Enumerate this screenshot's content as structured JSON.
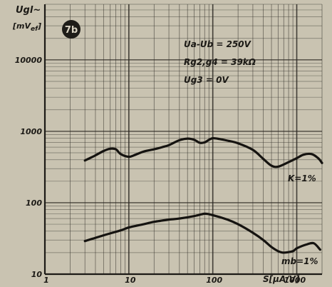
{
  "chart_data": {
    "type": "line",
    "figure_label": "7b",
    "ylabel": {
      "main": "Ugl~",
      "unit": "[mV",
      "unit_sub": "ef",
      "unit_end": "]"
    },
    "xlabel": "S[µA/V]",
    "x_scale": "log",
    "y_scale": "log",
    "xlim": [
      1,
      2000
    ],
    "ylim": [
      10,
      60000
    ],
    "x_tick_labels": [
      "1",
      "10",
      "100",
      "1000"
    ],
    "x_ticks": [
      1,
      10,
      100,
      1000
    ],
    "y_tick_labels": [
      "10",
      "100",
      "1000",
      "10000"
    ],
    "y_ticks": [
      10,
      100,
      1000,
      10000
    ],
    "grid": true,
    "annotations": [
      "Ua-Ub = 250V",
      "Rg2,g4 = 39kΩ",
      "Ug3 = 0V"
    ],
    "series": [
      {
        "name": "K=1%",
        "x": [
          3,
          4,
          5,
          6,
          7,
          8,
          10,
          12,
          15,
          20,
          25,
          30,
          40,
          50,
          60,
          70,
          80,
          90,
          100,
          120,
          150,
          200,
          300,
          400,
          500,
          600,
          800,
          1000,
          1200,
          1500,
          1800,
          2000
        ],
        "y": [
          390,
          460,
          530,
          570,
          560,
          480,
          440,
          470,
          520,
          560,
          600,
          640,
          750,
          790,
          760,
          690,
          700,
          760,
          800,
          780,
          740,
          680,
          550,
          410,
          330,
          320,
          370,
          420,
          470,
          480,
          420,
          360
        ]
      },
      {
        "name": "mb=1%",
        "x": [
          3,
          5,
          8,
          10,
          15,
          20,
          30,
          40,
          60,
          80,
          100,
          150,
          200,
          300,
          400,
          500,
          600,
          700,
          900,
          1000,
          1300,
          1600,
          1900
        ],
        "y": [
          29,
          35,
          41,
          45,
          50,
          54,
          58,
          60,
          65,
          70,
          67,
          58,
          50,
          38,
          30,
          24,
          21,
          20,
          21,
          23,
          26,
          27,
          22
        ]
      }
    ]
  }
}
